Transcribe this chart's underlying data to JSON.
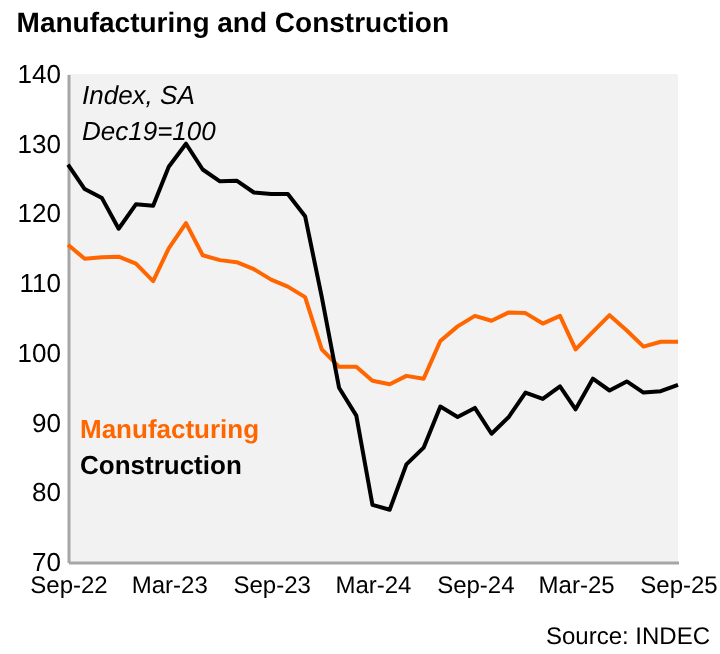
{
  "chart_data": {
    "type": "line",
    "title": "Manufacturing and Construction",
    "annotations": [
      "Index, SA",
      "Dec19=100",
      "Source: INDEC"
    ],
    "x": [
      "2022-09",
      "2022-10",
      "2022-11",
      "2022-12",
      "2023-01",
      "2023-02",
      "2023-03",
      "2023-04",
      "2023-05",
      "2023-06",
      "2023-07",
      "2023-08",
      "2023-09",
      "2023-10",
      "2023-11",
      "2023-12",
      "2024-01",
      "2024-02",
      "2024-03",
      "2024-04",
      "2024-05",
      "2024-06",
      "2024-07",
      "2024-08",
      "2024-09",
      "2024-10",
      "2024-11",
      "2024-12",
      "2025-01",
      "2025-02",
      "2025-03",
      "2025-04",
      "2025-05",
      "2025-06",
      "2025-07",
      "2025-08",
      "2025-09"
    ],
    "series": [
      {
        "name": "Manufacturing",
        "color": "#ff6600",
        "values": [
          115.5,
          113.5,
          113.7,
          113.8,
          112.8,
          110.3,
          115,
          118.6,
          114,
          113.3,
          113,
          112,
          110.5,
          109.5,
          108,
          100.5,
          98,
          98,
          96,
          95.5,
          96.7,
          96.3,
          101.7,
          103.8,
          105.3,
          104.6,
          105.8,
          105.7,
          104.2,
          105.3,
          100.5,
          103,
          105.4,
          103.2,
          100.9,
          101.6,
          101.6
        ]
      },
      {
        "name": "Construction",
        "color": "#000000",
        "values": [
          127,
          123.5,
          122.2,
          117.8,
          121.3,
          121.1,
          126.7,
          130,
          126.3,
          124.6,
          124.7,
          123,
          122.8,
          122.8,
          119.6,
          108,
          95,
          91,
          78.2,
          77.5,
          84,
          86.4,
          92.3,
          90.8,
          92.1,
          88.4,
          90.8,
          94.3,
          93.4,
          95.2,
          91.9,
          96.3,
          94.6,
          95.9,
          94.3,
          94.5,
          95.4
        ]
      }
    ],
    "xlim": [
      "2022-09",
      "2025-09"
    ],
    "xticks": [
      {
        "value": "2022-09",
        "label": "Sep-22"
      },
      {
        "value": "2023-03",
        "label": "Mar-23"
      },
      {
        "value": "2023-09",
        "label": "Sep-23"
      },
      {
        "value": "2024-03",
        "label": "Mar-24"
      },
      {
        "value": "2024-09",
        "label": "Sep-24"
      },
      {
        "value": "2025-03",
        "label": "Mar-25"
      },
      {
        "value": "2025-09",
        "label": "Sep-25"
      }
    ],
    "ylim": [
      70,
      140
    ],
    "yticks": [
      70,
      80,
      90,
      100,
      110,
      120,
      130,
      140
    ],
    "legend": "left",
    "marker": "none",
    "line_style": "solid"
  }
}
